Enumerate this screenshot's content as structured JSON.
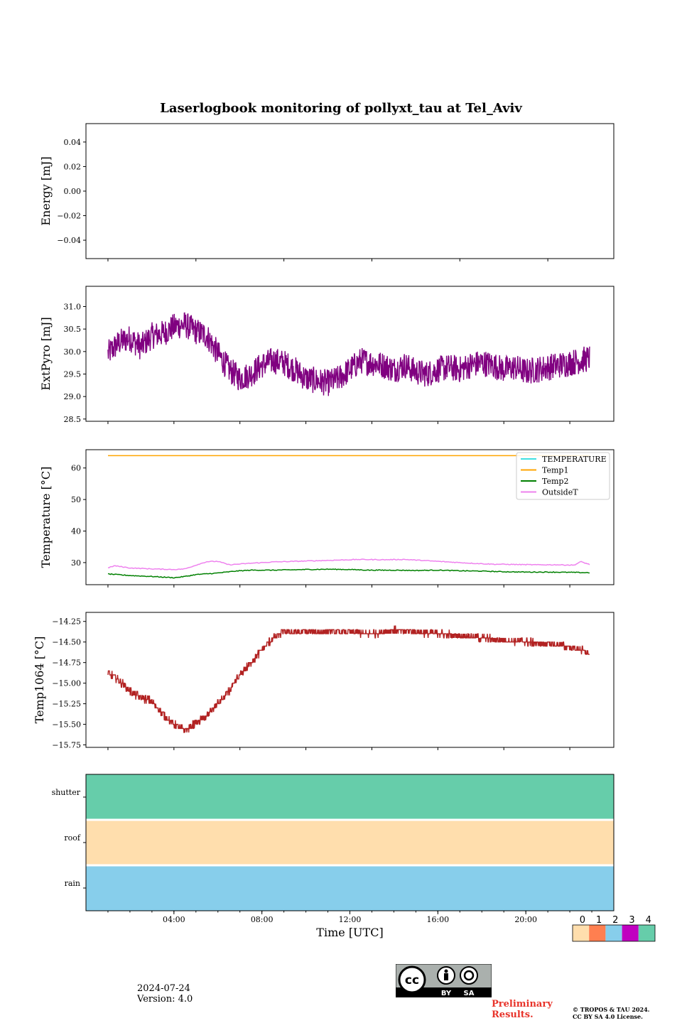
{
  "title": "Laserlogbook monitoring of pollyxt_tau at Tel_Aviv",
  "colors": {
    "extpyro": "#800080",
    "temperature": "#40e0e0",
    "temp1": "#ffa500",
    "temp2": "#008000",
    "outsideT": "#ee82ee",
    "temp1064": "#b22222",
    "status_0": "#ffdead",
    "status_1": "#ff7f50",
    "status_2": "#87ceeb",
    "status_3": "#c000c0",
    "status_4": "#66cdaa"
  },
  "chart_data": [
    {
      "type": "line",
      "name": "energy",
      "ylabel": "Energy [mJ]",
      "ylim": [
        -0.055,
        0.055
      ],
      "yticks": [
        0.04,
        0.02,
        0.0,
        -0.02,
        -0.04
      ],
      "ytick_labels": [
        "0.04",
        "0.02",
        "0.00",
        "−0.02",
        "−0.04"
      ],
      "series": []
    },
    {
      "type": "line",
      "name": "extpyro",
      "ylabel": "ExtPyro [mJ]",
      "ylim": [
        28.45,
        31.45
      ],
      "yticks": [
        31.0,
        30.5,
        30.0,
        29.5,
        29.0,
        28.5
      ],
      "ytick_labels": [
        "31.0",
        "30.5",
        "30.0",
        "29.5",
        "29.0",
        "28.5"
      ],
      "series": [
        {
          "x": [
            1.0,
            1.5,
            2.0,
            2.5,
            3.0,
            3.5,
            4.0,
            4.5,
            5.0,
            5.5,
            6.0,
            6.5,
            7.0,
            7.5,
            8.0,
            8.5,
            9.0,
            9.5,
            10.0,
            10.5,
            11.0,
            11.5,
            12.0,
            12.5,
            13.0,
            13.5,
            14.0,
            14.5,
            15.0,
            15.5,
            16.0,
            16.5,
            17.0,
            17.5,
            18.0,
            18.5,
            19.0,
            19.5,
            20.0,
            20.5,
            21.0,
            21.5,
            22.0,
            22.5,
            22.9
          ],
          "y": [
            29.95,
            30.2,
            30.3,
            30.1,
            30.35,
            30.4,
            30.55,
            30.6,
            30.45,
            30.35,
            29.95,
            29.6,
            29.4,
            29.5,
            29.7,
            29.8,
            29.75,
            29.6,
            29.4,
            29.35,
            29.3,
            29.4,
            29.6,
            29.8,
            29.75,
            29.7,
            29.6,
            29.7,
            29.55,
            29.5,
            29.6,
            29.65,
            29.6,
            29.7,
            29.75,
            29.7,
            29.6,
            29.65,
            29.55,
            29.6,
            29.65,
            29.7,
            29.75,
            29.8,
            29.85
          ],
          "noise": 0.3
        }
      ]
    },
    {
      "type": "line",
      "name": "temperature",
      "ylabel": "Temperature [°C]",
      "ylim": [
        23.0,
        65.8
      ],
      "yticks": [
        60,
        50,
        40,
        30
      ],
      "ytick_labels": [
        "60",
        "50",
        "40",
        "30"
      ],
      "legend": "top-right",
      "series": [
        {
          "name": "TEMPERATURE",
          "color": "temperature",
          "x": [],
          "y": []
        },
        {
          "name": "Temp1",
          "color": "temp1",
          "x": [
            1.0,
            22.9
          ],
          "y": [
            63.9,
            63.9
          ]
        },
        {
          "name": "Temp2",
          "color": "temp2",
          "x": [
            1.0,
            2.0,
            3.0,
            4.0,
            4.5,
            5.0,
            6.0,
            6.8,
            7.5,
            8.5,
            10.0,
            11.0,
            12.0,
            13.0,
            14.0,
            15.0,
            16.0,
            17.0,
            18.0,
            19.0,
            20.0,
            21.0,
            22.0,
            22.9
          ],
          "y": [
            26.4,
            25.9,
            25.6,
            25.2,
            25.6,
            26.2,
            26.7,
            27.3,
            27.6,
            27.6,
            27.8,
            27.9,
            27.8,
            27.6,
            27.6,
            27.5,
            27.6,
            27.4,
            27.3,
            27.1,
            27.0,
            27.0,
            26.9,
            26.8
          ]
        },
        {
          "name": "OutsideT",
          "color": "outsideT",
          "x": [
            1.0,
            1.3,
            2.0,
            3.0,
            4.0,
            4.5,
            5.0,
            5.5,
            6.0,
            6.5,
            7.5,
            8.5,
            9.5,
            10.5,
            11.5,
            12.5,
            13.5,
            14.5,
            15.5,
            16.5,
            17.5,
            18.5,
            19.5,
            20.5,
            21.5,
            22.2,
            22.5,
            22.9
          ],
          "y": [
            28.3,
            29.0,
            28.3,
            28.0,
            27.8,
            28.0,
            29.2,
            30.3,
            30.4,
            29.3,
            29.8,
            30.2,
            30.4,
            30.6,
            30.8,
            31.0,
            30.9,
            31.0,
            30.6,
            30.2,
            29.8,
            29.5,
            29.4,
            29.3,
            29.3,
            29.2,
            30.3,
            29.4
          ]
        }
      ]
    },
    {
      "type": "line",
      "name": "temp1064",
      "ylabel": "Temp1064 [°C]",
      "ylim": [
        -15.78,
        -14.14
      ],
      "yticks": [
        -14.25,
        -14.5,
        -14.75,
        -15.0,
        -15.25,
        -15.5,
        -15.75
      ],
      "ytick_labels": [
        "−14.25",
        "−14.50",
        "−14.75",
        "−15.00",
        "−15.25",
        "−15.50",
        "−15.75"
      ],
      "series": [
        {
          "x": [
            1.0,
            1.5,
            2.0,
            2.5,
            3.0,
            3.5,
            4.0,
            4.5,
            5.0,
            5.5,
            6.0,
            6.5,
            7.0,
            7.5,
            8.0,
            8.5,
            9.0,
            10.0,
            11.0,
            12.0,
            13.0,
            14.0,
            15.0,
            16.0,
            17.0,
            18.0,
            19.0,
            20.0,
            21.0,
            22.0,
            22.5,
            22.9
          ],
          "y": [
            -14.88,
            -14.96,
            -15.1,
            -15.18,
            -15.22,
            -15.38,
            -15.5,
            -15.58,
            -15.48,
            -15.4,
            -15.25,
            -15.1,
            -14.9,
            -14.75,
            -14.6,
            -14.45,
            -14.38,
            -14.38,
            -14.38,
            -14.38,
            -14.4,
            -14.36,
            -14.38,
            -14.4,
            -14.42,
            -14.45,
            -14.48,
            -14.5,
            -14.52,
            -14.56,
            -14.6,
            -14.65
          ],
          "noise": 0.04,
          "step": 0.05
        }
      ]
    },
    {
      "type": "heatmap",
      "name": "status",
      "xlabel": "Time [UTC]",
      "xlim": [
        0,
        24
      ],
      "xticks": [
        4,
        8,
        12,
        16,
        20
      ],
      "xtick_labels": [
        "04:00",
        "08:00",
        "12:00",
        "16:00",
        "20:00"
      ],
      "rows": [
        "shutter",
        "roof",
        "rain"
      ],
      "row_values": [
        4,
        0,
        2
      ],
      "colorbar": {
        "ticks": [
          "0",
          "1",
          "2",
          "3",
          "4"
        ],
        "colors": [
          "status_0",
          "status_1",
          "status_2",
          "status_3",
          "status_4"
        ]
      }
    }
  ],
  "footer": {
    "date": "2024-07-24",
    "version": "Version: 4.0",
    "preliminary_line1": "Preliminary",
    "preliminary_line2": "Results.",
    "copyright_line1": "© TROPOS & TAU 2024.",
    "copyright_line2": "CC BY SA 4.0 License.",
    "cc_by": "BY",
    "cc_sa": "SA",
    "cc_mark": "cc"
  }
}
